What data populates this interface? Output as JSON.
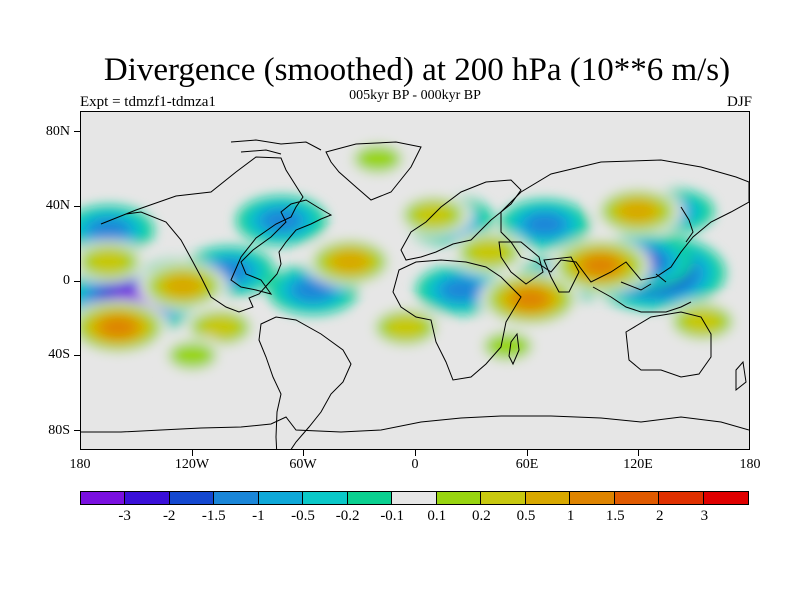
{
  "title": "Divergence (smoothed) at 200 hPa (10**6 m/s)",
  "subtitle": "005kyr BP - 000kyr BP",
  "experiment": "Expt = tdmzf1-tdmza1",
  "season": "DJF",
  "map": {
    "projection": "cylindrical-equidistant",
    "background_color": "#e6e6e6",
    "lat_labels": [
      "80N",
      "40N",
      "0",
      "40S",
      "80S"
    ],
    "lat_values": [
      80,
      40,
      0,
      -40,
      -80
    ],
    "lon_labels": [
      "180",
      "120W",
      "60W",
      "0",
      "60E",
      "120E",
      "180"
    ],
    "lon_values": [
      -180,
      -120,
      -60,
      0,
      60,
      120,
      180
    ],
    "lat_range": [
      -90,
      90
    ],
    "lon_range": [
      -180,
      180
    ]
  },
  "colorbar": {
    "colors": [
      "#7a10e0",
      "#3a10d8",
      "#1448d0",
      "#1a86d8",
      "#0ea8d8",
      "#0ac8c8",
      "#0ad090",
      "#e6e6e6",
      "#98d410",
      "#c8c810",
      "#d8a800",
      "#de8400",
      "#e05a00",
      "#e03000",
      "#e00000"
    ],
    "labels": [
      "-3",
      "-2",
      "-1.5",
      "-1",
      "-0.5",
      "-0.2",
      "-0.1",
      "0.1",
      "0.2",
      "0.5",
      "1",
      "1.5",
      "2",
      "3"
    ]
  },
  "chart_data": {
    "type": "heatmap",
    "title": "Divergence (smoothed) at 200 hPa (10**6 m/s)",
    "subtitle": "005kyr BP - 000kyr BP",
    "levels": [
      -3,
      -2,
      -1.5,
      -1,
      -0.5,
      -0.2,
      -0.1,
      0.1,
      0.2,
      0.5,
      1,
      1.5,
      2,
      3
    ],
    "xlim": [
      -180,
      180
    ],
    "ylim": [
      -90,
      90
    ],
    "anomaly_centers": [
      {
        "lon": -153,
        "lat": -10,
        "value": -3.0
      },
      {
        "lon": 130,
        "lat": 4,
        "value": -3.0
      },
      {
        "lon": 122,
        "lat": 10,
        "value": -1.5
      },
      {
        "lon": -165,
        "lat": 27,
        "value": -1.0
      },
      {
        "lon": -72,
        "lat": 32,
        "value": -1.0
      },
      {
        "lon": -100,
        "lat": 5,
        "value": -1.0
      },
      {
        "lon": 18,
        "lat": 32,
        "value": -1.0
      },
      {
        "lon": 70,
        "lat": 30,
        "value": -1.0
      },
      {
        "lon": 78,
        "lat": 0,
        "value": -1.0
      },
      {
        "lon": -55,
        "lat": -5,
        "value": -1.0
      },
      {
        "lon": 25,
        "lat": -5,
        "value": -1.0
      },
      {
        "lon": 140,
        "lat": 37,
        "value": -0.5
      },
      {
        "lon": -128,
        "lat": 0,
        "value": -0.5
      },
      {
        "lon": -160,
        "lat": -25,
        "value": 1.5
      },
      {
        "lon": -125,
        "lat": -3,
        "value": 1.0
      },
      {
        "lon": -35,
        "lat": 10,
        "value": 1.0
      },
      {
        "lon": 10,
        "lat": 35,
        "value": 0.5
      },
      {
        "lon": 120,
        "lat": 37,
        "value": 1.0
      },
      {
        "lon": 100,
        "lat": 8,
        "value": 1.5
      },
      {
        "lon": 62,
        "lat": -10,
        "value": 1.5
      },
      {
        "lon": -165,
        "lat": 10,
        "value": 0.5
      },
      {
        "lon": -5,
        "lat": -25,
        "value": 0.5
      },
      {
        "lon": 155,
        "lat": -22,
        "value": 0.5
      },
      {
        "lon": -105,
        "lat": -25,
        "value": 0.5
      },
      {
        "lon": -20,
        "lat": 65,
        "value": 0.2
      },
      {
        "lon": 40,
        "lat": 15,
        "value": 0.5
      },
      {
        "lon": 50,
        "lat": -35,
        "value": 0.2
      },
      {
        "lon": -120,
        "lat": -40,
        "value": 0.2
      }
    ]
  }
}
